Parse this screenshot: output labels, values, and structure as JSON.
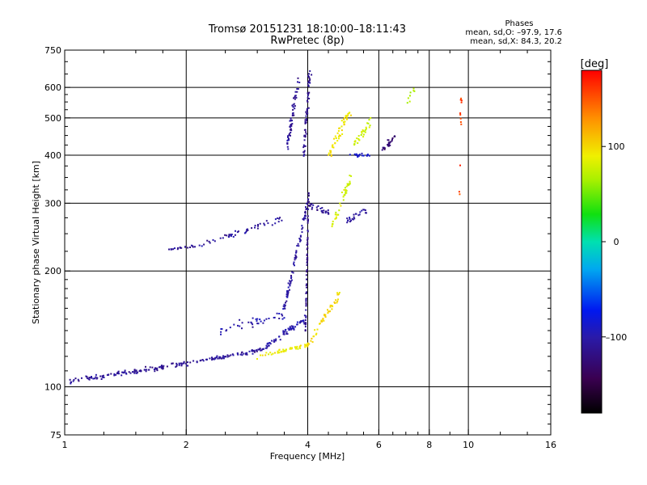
{
  "header": {
    "title": "Tromsø 20151231 18:10:00–18:11:43",
    "subtitle": "RwPretec (8p)",
    "stats_title": "Phases",
    "stats_o": "mean, sd,O: –97.9, 17.6",
    "stats_x": "mean, sd,X:  84.3, 20.2"
  },
  "chart_data": {
    "type": "scatter",
    "xlabel": "Frequency [MHz]",
    "ylabel": "Stationary phase Virtual Height [km]",
    "x_scale": "log",
    "y_scale": "log",
    "xlim": [
      1,
      16
    ],
    "ylim": [
      75,
      750
    ],
    "x_ticks": [
      1,
      2,
      4,
      6,
      8,
      10,
      16
    ],
    "x_tick_labels": [
      "1",
      "2",
      "4",
      "6",
      "8",
      "10",
      "16"
    ],
    "y_ticks": [
      75,
      100,
      200,
      300,
      400,
      500,
      600,
      750
    ],
    "y_tick_labels": [
      "75",
      "100",
      "200",
      "300",
      "400",
      "500",
      "600",
      "750"
    ],
    "x_gridlines": [
      2,
      4,
      6,
      8,
      10
    ],
    "y_gridlines": [
      100,
      200,
      300,
      400,
      500,
      600
    ],
    "grid": true,
    "colorbar": {
      "label": "[deg]",
      "range": [
        -180,
        180
      ],
      "ticks": [
        100,
        0,
        -100
      ],
      "tick_labels": [
        "100",
        "0",
        "–100"
      ]
    },
    "series": [
      {
        "mode": "O",
        "segments": [
          {
            "x0": 1.0,
            "x1": 2.0,
            "y0": 103,
            "y1": 115,
            "n": 120,
            "spread": 0.022,
            "ph": -110
          },
          {
            "x0": 2.0,
            "x1": 3.1,
            "y0": 115,
            "y1": 125,
            "n": 80,
            "spread": 0.02,
            "ph": -108
          },
          {
            "x0": 3.1,
            "x1": 3.95,
            "y0": 126,
            "y1": 150,
            "n": 60,
            "spread": 0.025,
            "ph": -100
          },
          {
            "x0": 3.5,
            "x1": 4.0,
            "y0": 160,
            "y1": 300,
            "n": 80,
            "spread": 0.03,
            "ph": -105
          },
          {
            "x0": 3.95,
            "x1": 4.02,
            "y0": 140,
            "y1": 320,
            "n": 70,
            "spread": 0.01,
            "ph": -115
          },
          {
            "x0": 1.8,
            "x1": 2.1,
            "y0": 228,
            "y1": 232,
            "n": 20,
            "spread": 0.01,
            "ph": -110
          },
          {
            "x0": 2.1,
            "x1": 3.5,
            "y0": 232,
            "y1": 275,
            "n": 50,
            "spread": 0.025,
            "ph": -108
          },
          {
            "x0": 2.4,
            "x1": 3.5,
            "y0": 140,
            "y1": 155,
            "n": 40,
            "spread": 0.06,
            "ph": -100
          },
          {
            "x0": 3.55,
            "x1": 3.8,
            "y0": 420,
            "y1": 620,
            "n": 60,
            "spread": 0.04,
            "ph": -108
          },
          {
            "x0": 3.9,
            "x1": 4.05,
            "y0": 400,
            "y1": 650,
            "n": 60,
            "spread": 0.04,
            "ph": -112
          },
          {
            "x0": 4.0,
            "x1": 4.6,
            "y0": 300,
            "y1": 280,
            "n": 30,
            "spread": 0.03,
            "ph": -112
          },
          {
            "x0": 5.0,
            "x1": 5.6,
            "y0": 270,
            "y1": 290,
            "n": 25,
            "spread": 0.03,
            "ph": -105
          },
          {
            "x0": 6.1,
            "x1": 6.6,
            "y0": 410,
            "y1": 450,
            "n": 25,
            "spread": 0.03,
            "ph": -125
          },
          {
            "x0": 5.0,
            "x1": 5.8,
            "y0": 400,
            "y1": 400,
            "n": 20,
            "spread": 0.015,
            "ph": -90
          }
        ]
      },
      {
        "mode": "X",
        "segments": [
          {
            "x0": 3.0,
            "x1": 4.0,
            "y0": 120,
            "y1": 128,
            "n": 45,
            "spread": 0.02,
            "ph": 90
          },
          {
            "x0": 4.0,
            "x1": 4.8,
            "y0": 128,
            "y1": 175,
            "n": 50,
            "spread": 0.03,
            "ph": 100
          },
          {
            "x0": 4.6,
            "x1": 5.1,
            "y0": 260,
            "y1": 350,
            "n": 40,
            "spread": 0.04,
            "ph": 80
          },
          {
            "x0": 4.5,
            "x1": 5.1,
            "y0": 400,
            "y1": 520,
            "n": 50,
            "spread": 0.04,
            "ph": 95
          },
          {
            "x0": 5.2,
            "x1": 5.8,
            "y0": 420,
            "y1": 500,
            "n": 30,
            "spread": 0.04,
            "ph": 75
          },
          {
            "x0": 7.0,
            "x1": 7.4,
            "y0": 550,
            "y1": 600,
            "n": 8,
            "spread": 0.04,
            "ph": 70
          },
          {
            "x0": 9.5,
            "x1": 9.6,
            "y0": 300,
            "y1": 630,
            "n": 12,
            "spread": 0.03,
            "ph": 160
          }
        ]
      }
    ]
  }
}
